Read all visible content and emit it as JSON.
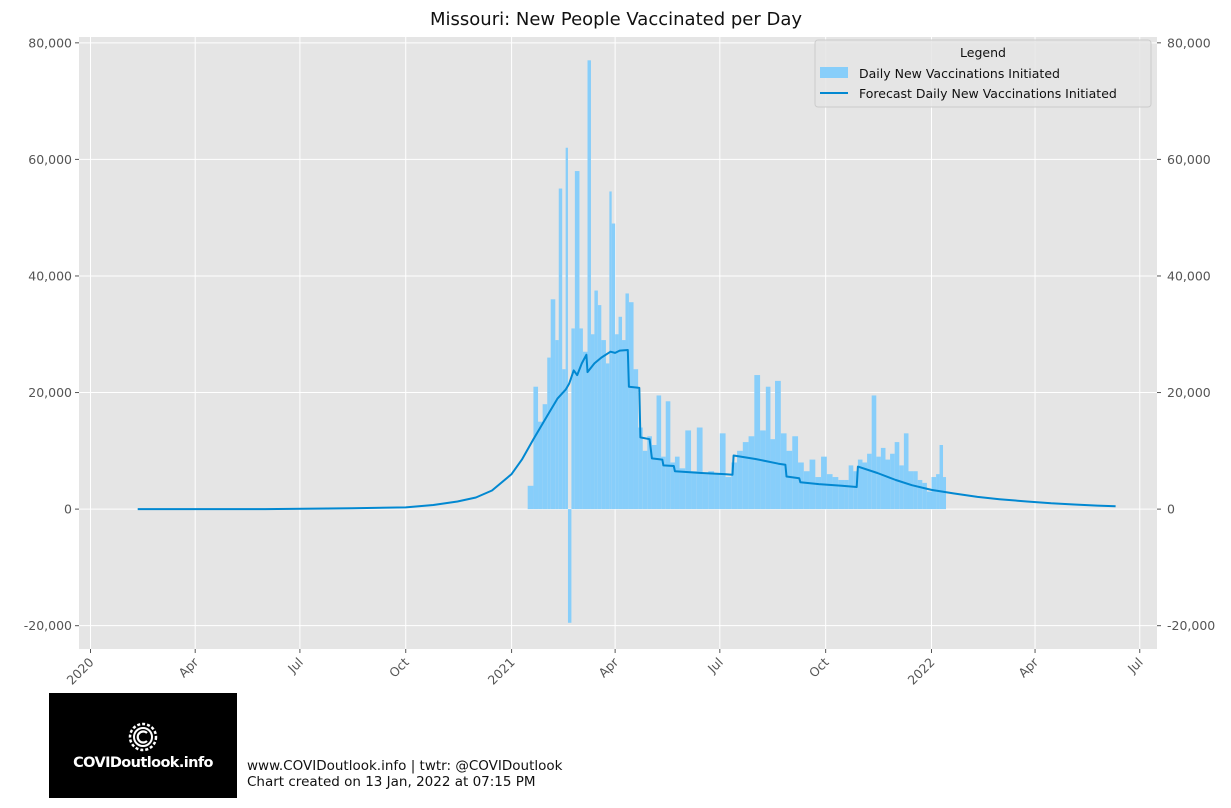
{
  "chart_data": {
    "type": "bar",
    "title": "Missouri: New People Vaccinated per Day",
    "xlabel": "",
    "ylabel": "",
    "x_range": [
      "2019-12-22",
      "2022-07-16"
    ],
    "ylim": [
      -24000,
      81000
    ],
    "grid": true,
    "legend": {
      "title": "Legend",
      "placement": "top-right",
      "entries": [
        "Daily New Vaccinations Initiated",
        "Forecast Daily New Vaccinations Initiated"
      ]
    },
    "x_tick_labels": [
      {
        "label": "2020",
        "date": "2020-01-01"
      },
      {
        "label": "Apr",
        "date": "2020-04-01"
      },
      {
        "label": "Jul",
        "date": "2020-07-01"
      },
      {
        "label": "Oct",
        "date": "2020-10-01"
      },
      {
        "label": "2021",
        "date": "2021-01-01"
      },
      {
        "label": "Apr",
        "date": "2021-04-01"
      },
      {
        "label": "Jul",
        "date": "2021-07-01"
      },
      {
        "label": "Oct",
        "date": "2021-10-01"
      },
      {
        "label": "2022",
        "date": "2022-01-01"
      },
      {
        "label": "Apr",
        "date": "2022-04-01"
      },
      {
        "label": "Jul",
        "date": "2022-07-01"
      }
    ],
    "y_ticks": [
      {
        "value": 80000,
        "label": "80,000"
      },
      {
        "value": 60000,
        "label": "60,000"
      },
      {
        "value": 40000,
        "label": "40,000"
      },
      {
        "value": 20000,
        "label": "20,000"
      },
      {
        "value": 0,
        "label": "0"
      },
      {
        "value": -20000,
        "label": "-20,000"
      }
    ],
    "series": [
      {
        "name": "Daily New Vaccinations Initiated",
        "type": "bar",
        "color": "#87CEFA",
        "points": [
          [
            "2021-01-15",
            4000
          ],
          [
            "2021-01-20",
            21000
          ],
          [
            "2021-01-24",
            15000
          ],
          [
            "2021-01-28",
            18000
          ],
          [
            "2021-02-01",
            26000
          ],
          [
            "2021-02-04",
            36000
          ],
          [
            "2021-02-08",
            29000
          ],
          [
            "2021-02-11",
            55000
          ],
          [
            "2021-02-14",
            24000
          ],
          [
            "2021-02-17",
            62000
          ],
          [
            "2021-02-19",
            -19500
          ],
          [
            "2021-02-22",
            31000
          ],
          [
            "2021-02-25",
            58000
          ],
          [
            "2021-03-01",
            31000
          ],
          [
            "2021-03-04",
            27000
          ],
          [
            "2021-03-08",
            77000
          ],
          [
            "2021-03-11",
            30000
          ],
          [
            "2021-03-14",
            37500
          ],
          [
            "2021-03-17",
            35000
          ],
          [
            "2021-03-20",
            29000
          ],
          [
            "2021-03-24",
            25000
          ],
          [
            "2021-03-27",
            54500
          ],
          [
            "2021-03-29",
            49000
          ],
          [
            "2021-04-01",
            30000
          ],
          [
            "2021-04-04",
            33000
          ],
          [
            "2021-04-07",
            29000
          ],
          [
            "2021-04-10",
            37000
          ],
          [
            "2021-04-13",
            35500
          ],
          [
            "2021-04-17",
            24000
          ],
          [
            "2021-04-21",
            14000
          ],
          [
            "2021-04-25",
            10000
          ],
          [
            "2021-04-29",
            12500
          ],
          [
            "2021-05-03",
            11000
          ],
          [
            "2021-05-07",
            19500
          ],
          [
            "2021-05-11",
            9000
          ],
          [
            "2021-05-15",
            18500
          ],
          [
            "2021-05-19",
            8000
          ],
          [
            "2021-05-23",
            9000
          ],
          [
            "2021-05-27",
            7000
          ],
          [
            "2021-06-01",
            13500
          ],
          [
            "2021-06-06",
            6500
          ],
          [
            "2021-06-11",
            14000
          ],
          [
            "2021-06-16",
            6000
          ],
          [
            "2021-06-21",
            6500
          ],
          [
            "2021-06-26",
            6000
          ],
          [
            "2021-07-01",
            13000
          ],
          [
            "2021-07-06",
            5500
          ],
          [
            "2021-07-11",
            8000
          ],
          [
            "2021-07-16",
            10000
          ],
          [
            "2021-07-21",
            11500
          ],
          [
            "2021-07-26",
            12500
          ],
          [
            "2021-07-31",
            23000
          ],
          [
            "2021-08-05",
            13500
          ],
          [
            "2021-08-10",
            21000
          ],
          [
            "2021-08-14",
            12000
          ],
          [
            "2021-08-18",
            22000
          ],
          [
            "2021-08-23",
            13000
          ],
          [
            "2021-08-28",
            10000
          ],
          [
            "2021-09-02",
            12500
          ],
          [
            "2021-09-07",
            8000
          ],
          [
            "2021-09-12",
            6500
          ],
          [
            "2021-09-17",
            8500
          ],
          [
            "2021-09-22",
            5500
          ],
          [
            "2021-09-27",
            9000
          ],
          [
            "2021-10-02",
            6000
          ],
          [
            "2021-10-07",
            5500
          ],
          [
            "2021-10-12",
            5000
          ],
          [
            "2021-10-17",
            5000
          ],
          [
            "2021-10-21",
            7500
          ],
          [
            "2021-10-25",
            6500
          ],
          [
            "2021-10-29",
            8500
          ],
          [
            "2021-11-02",
            8000
          ],
          [
            "2021-11-06",
            9500
          ],
          [
            "2021-11-10",
            19500
          ],
          [
            "2021-11-14",
            9000
          ],
          [
            "2021-11-18",
            10500
          ],
          [
            "2021-11-22",
            8500
          ],
          [
            "2021-11-26",
            9500
          ],
          [
            "2021-11-30",
            11500
          ],
          [
            "2021-12-04",
            7500
          ],
          [
            "2021-12-08",
            13000
          ],
          [
            "2021-12-12",
            6500
          ],
          [
            "2021-12-16",
            6500
          ],
          [
            "2021-12-20",
            5000
          ],
          [
            "2021-12-24",
            4500
          ],
          [
            "2021-12-28",
            3000
          ],
          [
            "2022-01-01",
            5500
          ],
          [
            "2022-01-05",
            6000
          ],
          [
            "2022-01-08",
            11000
          ],
          [
            "2022-01-11",
            5500
          ]
        ]
      },
      {
        "name": "Forecast Daily New Vaccinations Initiated",
        "type": "line",
        "color": "#0288D1",
        "points": [
          [
            "2020-02-11",
            0
          ],
          [
            "2020-06-01",
            0
          ],
          [
            "2020-08-15",
            150
          ],
          [
            "2020-10-01",
            300
          ],
          [
            "2020-10-25",
            700
          ],
          [
            "2020-11-15",
            1300
          ],
          [
            "2020-12-01",
            2000
          ],
          [
            "2020-12-15",
            3200
          ],
          [
            "2021-01-01",
            6000
          ],
          [
            "2021-01-10",
            8500
          ],
          [
            "2021-01-20",
            12000
          ],
          [
            "2021-02-01",
            16000
          ],
          [
            "2021-02-10",
            19000
          ],
          [
            "2021-02-17",
            20500
          ],
          [
            "2021-02-20",
            21500
          ],
          [
            "2021-02-24",
            23800
          ],
          [
            "2021-02-27",
            23000
          ],
          [
            "2021-03-03",
            25000
          ],
          [
            "2021-03-07",
            26500
          ],
          [
            "2021-03-08",
            23500
          ],
          [
            "2021-03-14",
            25000
          ],
          [
            "2021-03-20",
            26000
          ],
          [
            "2021-03-28",
            27000
          ],
          [
            "2021-04-01",
            26800
          ],
          [
            "2021-04-05",
            27200
          ],
          [
            "2021-04-12",
            27300
          ],
          [
            "2021-04-13",
            21000
          ],
          [
            "2021-04-22",
            20800
          ],
          [
            "2021-04-23",
            12300
          ],
          [
            "2021-05-01",
            12000
          ],
          [
            "2021-05-03",
            8700
          ],
          [
            "2021-05-12",
            8500
          ],
          [
            "2021-05-13",
            7500
          ],
          [
            "2021-05-22",
            7400
          ],
          [
            "2021-05-23",
            6500
          ],
          [
            "2021-06-15",
            6200
          ],
          [
            "2021-07-05",
            6000
          ],
          [
            "2021-07-12",
            5900
          ],
          [
            "2021-07-13",
            9200
          ],
          [
            "2021-08-01",
            8600
          ],
          [
            "2021-08-21",
            7800
          ],
          [
            "2021-08-27",
            7600
          ],
          [
            "2021-08-28",
            5600
          ],
          [
            "2021-09-08",
            5300
          ],
          [
            "2021-09-09",
            4600
          ],
          [
            "2021-09-25",
            4300
          ],
          [
            "2021-10-15",
            4000
          ],
          [
            "2021-10-28",
            3800
          ],
          [
            "2021-10-29",
            7300
          ],
          [
            "2021-11-15",
            6200
          ],
          [
            "2021-12-01",
            5000
          ],
          [
            "2021-12-15",
            4100
          ],
          [
            "2022-01-01",
            3300
          ],
          [
            "2022-01-20",
            2700
          ],
          [
            "2022-02-10",
            2100
          ],
          [
            "2022-03-01",
            1700
          ],
          [
            "2022-03-25",
            1300
          ],
          [
            "2022-04-15",
            1000
          ],
          [
            "2022-05-05",
            800
          ],
          [
            "2022-05-25",
            600
          ],
          [
            "2022-06-10",
            500
          ]
        ]
      }
    ]
  },
  "footer": {
    "logo_text": "COVIDoutlook.info",
    "line1": "www.COVIDoutlook.info | twtr: @COVIDoutlook",
    "line2": "Chart created on 13 Jan, 2022 at 07:15 PM"
  },
  "colors": {
    "plot_background": "#E5E5E5",
    "grid": "#FFFFFF",
    "bars": "#87CEFA",
    "forecast_line": "#0288D1"
  }
}
